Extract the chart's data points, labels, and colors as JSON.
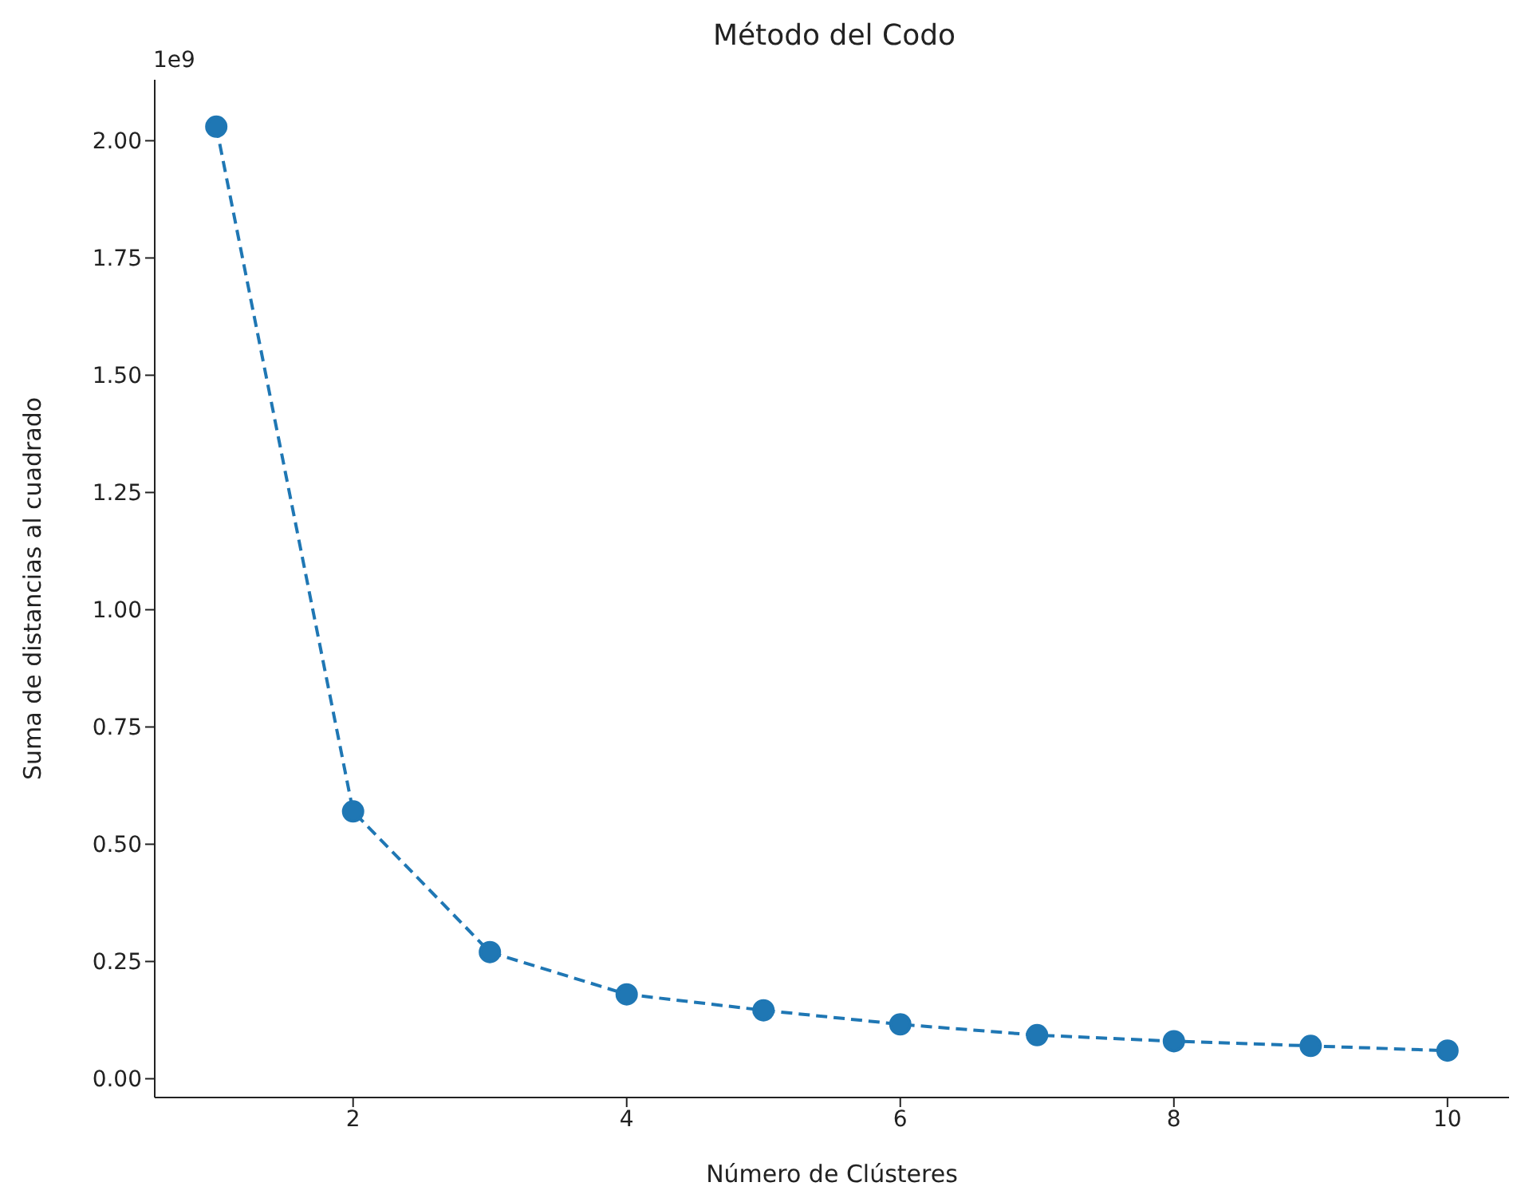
{
  "chart_data": {
    "type": "line",
    "title": "Método del Codo",
    "xlabel": "Número de Clústeres",
    "ylabel": "Suma de distancias al cuadrado",
    "annotations": [
      "1e9"
    ],
    "x": [
      1,
      2,
      3,
      4,
      5,
      6,
      7,
      8,
      9,
      10
    ],
    "series": [
      {
        "color": "#1f77b4",
        "values": [
          2.03,
          0.57,
          0.27,
          0.18,
          0.146,
          0.116,
          0.093,
          0.08,
          0.07,
          0.06
        ]
      }
    ],
    "xlim": [
      0.55,
      10.45
    ],
    "xticks": [
      2,
      4,
      6,
      8,
      10
    ],
    "ylim": [
      -0.04,
      2.13
    ],
    "yticks": [
      {
        "value": 0,
        "label": "0.00"
      },
      {
        "value": 0.25,
        "label": "0.25"
      },
      {
        "value": 0.5,
        "label": "0.50"
      },
      {
        "value": 0.75,
        "label": "0.75"
      },
      {
        "value": 1,
        "label": "1.00"
      },
      {
        "value": 1.25,
        "label": "1.25"
      },
      {
        "value": 1.5,
        "label": "1.50"
      },
      {
        "value": 1.75,
        "label": "1.75"
      },
      {
        "value": 2,
        "label": "2.00"
      }
    ],
    "grid": false,
    "legend": false,
    "marker": "circle",
    "line_style": "dashed"
  }
}
